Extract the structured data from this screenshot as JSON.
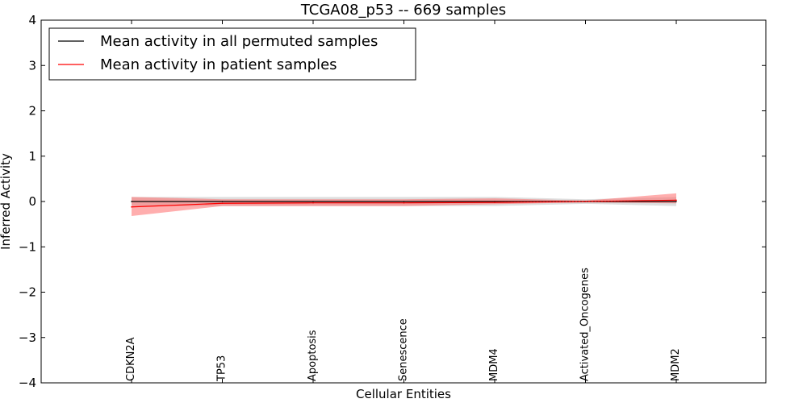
{
  "chart_data": {
    "type": "line",
    "title": "TCGA08_p53 -- 669 samples",
    "xlabel": "Cellular Entities",
    "ylabel": "Inferred Activity",
    "ylim": [
      -4,
      4
    ],
    "yticks": [
      4,
      3,
      2,
      1,
      0,
      -1,
      -2,
      -3,
      -4
    ],
    "ytick_labels": [
      "4",
      "3",
      "2",
      "1",
      "0",
      "−1",
      "−2",
      "−3",
      "−4"
    ],
    "categories": [
      "CDKN2A",
      "TP53",
      "Apoptosis",
      "Senescence",
      "MDM4",
      "Activated_Oncogenes",
      "MDM2"
    ],
    "legend_position": "top-left",
    "grid": false,
    "series": [
      {
        "name": "Mean activity in all permuted samples",
        "color": "#000000",
        "band_color": "#bdbdbd",
        "values": [
          0.0,
          0.0,
          0.0,
          0.0,
          0.0,
          0.0,
          0.0
        ],
        "lower": [
          -0.1,
          -0.1,
          -0.1,
          -0.1,
          -0.1,
          -0.05,
          -0.1
        ],
        "upper": [
          0.1,
          0.1,
          0.1,
          0.1,
          0.1,
          0.05,
          0.1
        ]
      },
      {
        "name": "Mean activity in patient samples",
        "color": "#ff0000",
        "band_color": "#ff6b6b",
        "values": [
          -0.12,
          -0.04,
          -0.03,
          -0.03,
          -0.02,
          0.0,
          0.03
        ],
        "lower": [
          -0.32,
          -0.1,
          -0.1,
          -0.1,
          -0.06,
          -0.02,
          -0.04
        ],
        "upper": [
          0.1,
          0.05,
          0.05,
          0.05,
          0.07,
          0.02,
          0.18
        ]
      }
    ]
  }
}
